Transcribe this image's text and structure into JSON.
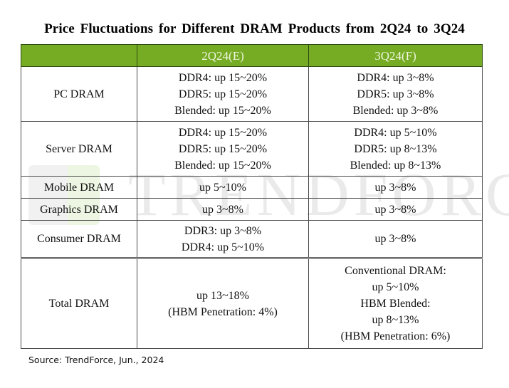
{
  "title": "Price Fluctuations for Different DRAM Products from 2Q24 to 3Q24",
  "watermark": "TRENDFORCE",
  "colors": {
    "header_bg": "#76ab24",
    "header_text": "#eef6dc",
    "border": "#4a4a4a"
  },
  "table": {
    "headers": [
      "",
      "2Q24(E)",
      "3Q24(F)"
    ],
    "rows": [
      {
        "product": "PC DRAM",
        "q2": [
          "DDR4: up 15~20%",
          "DDR5: up 15~20%",
          "Blended: up 15~20%"
        ],
        "q3": [
          "DDR4: up 3~8%",
          "DDR5: up 3~8%",
          "Blended: up 3~8%"
        ]
      },
      {
        "product": "Server DRAM",
        "q2": [
          "DDR4: up 15~20%",
          "DDR5: up 15~20%",
          "Blended: up 15~20%"
        ],
        "q3": [
          "DDR4: up 5~10%",
          "DDR5: up 8~13%",
          "Blended: up 8~13%"
        ]
      },
      {
        "product": "Mobile DRAM",
        "q2": [
          "up 5~10%"
        ],
        "q3": [
          "up 3~8%"
        ]
      },
      {
        "product": "Graphics DRAM",
        "q2": [
          "up 3~8%"
        ],
        "q3": [
          "up 3~8%"
        ]
      },
      {
        "product": "Consumer DRAM",
        "q2": [
          "DDR3: up 3~8%",
          "DDR4: up 5~10%"
        ],
        "q3": [
          "up 3~8%"
        ]
      },
      {
        "product": "Total DRAM",
        "q2": [
          "up 13~18%",
          "(HBM Penetration: 4%)"
        ],
        "q3": [
          "Conventional DRAM:",
          "up 5~10%",
          "HBM Blended:",
          "up 8~13%",
          "(HBM Penetration: 6%)"
        ]
      }
    ]
  },
  "source": "Source: TrendForce, Jun., 2024"
}
